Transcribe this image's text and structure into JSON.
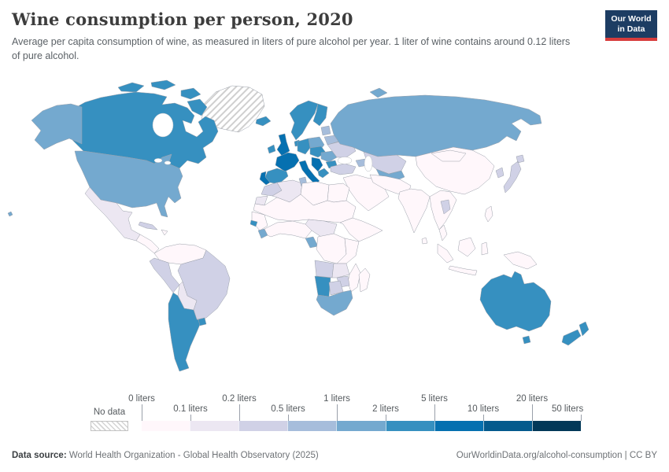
{
  "header": {
    "title": "Wine consumption per person, 2020",
    "subtitle": "Average per capita consumption of wine, as measured in liters of pure alcohol per year. 1 liter of wine contains around 0.12 liters of pure alcohol.",
    "logo": {
      "line1": "Our World",
      "line2": "in Data",
      "bg_color": "#1d3d63",
      "accent_color": "#d73c3c"
    }
  },
  "legend": {
    "no_data_label": "No data",
    "ticks": [
      {
        "label": "0 liters",
        "row": "top"
      },
      {
        "label": "0.1 liters",
        "row": "bottom"
      },
      {
        "label": "0.2 liters",
        "row": "top"
      },
      {
        "label": "0.5 liters",
        "row": "bottom"
      },
      {
        "label": "1 liters",
        "row": "top"
      },
      {
        "label": "2 liters",
        "row": "bottom"
      },
      {
        "label": "5 liters",
        "row": "top"
      },
      {
        "label": "10 liters",
        "row": "bottom"
      },
      {
        "label": "20 liters",
        "row": "top"
      },
      {
        "label": "50 liters",
        "row": "bottom"
      }
    ]
  },
  "footer": {
    "source_label": "Data source:",
    "source_text": " World Health Organization - Global Health Observatory (2025)",
    "credit": "OurWorldinData.org/alcohol-consumption | CC BY"
  },
  "chart_data": {
    "type": "heatmap",
    "variant": "choropleth-world-map",
    "title": "Wine consumption per person, 2020",
    "unit": "liters of pure alcohol per year",
    "legend_position": "bottom",
    "no_data": {
      "label": "No data",
      "pattern": "diagonal-hatch"
    },
    "bins": [
      {
        "min": 0,
        "max": 0.1,
        "color": "#fff7fb"
      },
      {
        "min": 0.1,
        "max": 0.2,
        "color": "#ece7f2"
      },
      {
        "min": 0.2,
        "max": 0.5,
        "color": "#d0d1e6"
      },
      {
        "min": 0.5,
        "max": 1,
        "color": "#a6bddb"
      },
      {
        "min": 1,
        "max": 2,
        "color": "#74a9cf"
      },
      {
        "min": 2,
        "max": 5,
        "color": "#3690c0"
      },
      {
        "min": 5,
        "max": 10,
        "color": "#0570b0"
      },
      {
        "min": 10,
        "max": 20,
        "color": "#045a8d"
      },
      {
        "min": 20,
        "max": 50,
        "color": "#023858"
      }
    ],
    "ocean_color": "#ffffff",
    "border_color": "#9aa0aa",
    "regions": {
      "greenland": {
        "label": "Greenland",
        "value_range": "No data",
        "color": "hatch"
      },
      "canada": {
        "label": "Canada",
        "value_range": "2-5",
        "color": "#3690c0"
      },
      "canadian-arctic": {
        "label": "Canadian Arctic islands",
        "value_range": "2-5",
        "color": "#3690c0"
      },
      "alaska": {
        "label": "Alaska (United States)",
        "value_range": "1-2",
        "color": "#74a9cf"
      },
      "usa": {
        "label": "United States",
        "value_range": "1-2",
        "color": "#74a9cf"
      },
      "hawaii": {
        "label": "Hawaii (United States)",
        "value_range": "1-2",
        "color": "#74a9cf"
      },
      "mexico": {
        "label": "Mexico",
        "value_range": "0.1-0.2",
        "color": "#ece7f2"
      },
      "central-america": {
        "label": "Central America",
        "value_range": "0-0.1",
        "color": "#fff7fb"
      },
      "cuba": {
        "label": "Cuba",
        "value_range": "0.2-0.5",
        "color": "#d0d1e6"
      },
      "hispaniola": {
        "label": "Hispaniola",
        "value_range": "0-0.1",
        "color": "#fff7fb"
      },
      "colombia-venezuela": {
        "label": "Colombia / Venezuela / Guianas",
        "value_range": "0-0.1",
        "color": "#fff7fb"
      },
      "brazil": {
        "label": "Brazil",
        "value_range": "0.2-0.5",
        "color": "#d0d1e6"
      },
      "peru": {
        "label": "Peru / Ecuador",
        "value_range": "0.2-0.5",
        "color": "#d0d1e6"
      },
      "bolivia": {
        "label": "Bolivia",
        "value_range": "0.1-0.2",
        "color": "#ece7f2"
      },
      "argentina-chile": {
        "label": "Argentina / Chile",
        "value_range": "2-5",
        "color": "#3690c0"
      },
      "uruguay": {
        "label": "Uruguay",
        "value_range": "2-5",
        "color": "#3690c0"
      },
      "iceland": {
        "label": "Iceland",
        "value_range": "2-5",
        "color": "#3690c0"
      },
      "ireland": {
        "label": "Ireland",
        "value_range": "2-5",
        "color": "#3690c0"
      },
      "uk": {
        "label": "United Kingdom",
        "value_range": "5-10",
        "color": "#0570b0"
      },
      "norway-sweden": {
        "label": "Norway / Sweden",
        "value_range": "2-5",
        "color": "#3690c0"
      },
      "denmark": {
        "label": "Denmark",
        "value_range": "2-5",
        "color": "#3690c0"
      },
      "finland": {
        "label": "Finland",
        "value_range": "2-5",
        "color": "#3690c0"
      },
      "baltics": {
        "label": "Baltic states",
        "value_range": "0.5-1",
        "color": "#a6bddb"
      },
      "belarus": {
        "label": "Belarus",
        "value_range": "0.5-1",
        "color": "#a6bddb"
      },
      "poland": {
        "label": "Poland",
        "value_range": "1-2",
        "color": "#74a9cf"
      },
      "germany": {
        "label": "Germany / Benelux",
        "value_range": "2-5",
        "color": "#3690c0"
      },
      "france": {
        "label": "France",
        "value_range": "5-10",
        "color": "#0570b0"
      },
      "spain": {
        "label": "Spain",
        "value_range": "2-5",
        "color": "#3690c0"
      },
      "portugal": {
        "label": "Portugal",
        "value_range": "5-10",
        "color": "#0570b0"
      },
      "italy": {
        "label": "Italy",
        "value_range": "5-10",
        "color": "#0570b0"
      },
      "central-europe": {
        "label": "Central Europe",
        "value_range": "2-5",
        "color": "#3690c0"
      },
      "romania": {
        "label": "Romania",
        "value_range": "1-2",
        "color": "#74a9cf"
      },
      "balkans": {
        "label": "Western Balkans",
        "value_range": "5-10",
        "color": "#0570b0"
      },
      "greece": {
        "label": "Greece",
        "value_range": "2-5",
        "color": "#3690c0"
      },
      "bulgaria": {
        "label": "Bulgaria",
        "value_range": "2-5",
        "color": "#3690c0"
      },
      "ukraine": {
        "label": "Ukraine",
        "value_range": "0.2-0.5",
        "color": "#d0d1e6"
      },
      "russia": {
        "label": "Russia",
        "value_range": "1-2",
        "color": "#74a9cf"
      },
      "novaya-zemlya": {
        "label": "Novaya Zemlya (Russia)",
        "value_range": "1-2",
        "color": "#74a9cf"
      },
      "kazakhstan": {
        "label": "Kazakhstan",
        "value_range": "0.2-0.5",
        "color": "#d0d1e6"
      },
      "turkmenistan-uzbekistan": {
        "label": "Turkmenistan / Uzbekistan",
        "value_range": "1-2",
        "color": "#74a9cf"
      },
      "turkey": {
        "label": "Turkey",
        "value_range": "0.2-0.5",
        "color": "#d0d1e6"
      },
      "caucasus": {
        "label": "Caucasus",
        "value_range": "0.5-1",
        "color": "#a6bddb"
      },
      "middle-east": {
        "label": "Arabian Peninsula / Levant",
        "value_range": "0-0.1",
        "color": "#fff7fb"
      },
      "iran-afghanistan": {
        "label": "Iran / Afghanistan / Pakistan",
        "value_range": "0-0.1",
        "color": "#fff7fb"
      },
      "india": {
        "label": "India",
        "value_range": "0-0.1",
        "color": "#fff7fb"
      },
      "sri-lanka": {
        "label": "Sri Lanka",
        "value_range": "0-0.1",
        "color": "#fff7fb"
      },
      "china": {
        "label": "China",
        "value_range": "0-0.1",
        "color": "#fff7fb"
      },
      "mongolia": {
        "label": "Mongolia",
        "value_range": "0-0.1",
        "color": "#fff7fb"
      },
      "southeast-asia": {
        "label": "Mainland Southeast Asia",
        "value_range": "0-0.1",
        "color": "#fff7fb"
      },
      "laos": {
        "label": "Laos",
        "value_range": "0.2-0.5",
        "color": "#d0d1e6"
      },
      "korea": {
        "label": "South Korea",
        "value_range": "0.2-0.5",
        "color": "#d0d1e6"
      },
      "japan": {
        "label": "Japan",
        "value_range": "0.2-0.5",
        "color": "#d0d1e6"
      },
      "philippines": {
        "label": "Philippines",
        "value_range": "0-0.1",
        "color": "#fff7fb"
      },
      "malay-peninsula": {
        "label": "Malay Peninsula",
        "value_range": "0-0.1",
        "color": "#fff7fb"
      },
      "sumatra": {
        "label": "Sumatra (Indonesia)",
        "value_range": "0-0.1",
        "color": "#fff7fb"
      },
      "borneo": {
        "label": "Borneo",
        "value_range": "0-0.1",
        "color": "#fff7fb"
      },
      "sulawesi": {
        "label": "Sulawesi (Indonesia)",
        "value_range": "0-0.1",
        "color": "#fff7fb"
      },
      "java": {
        "label": "Java (Indonesia)",
        "value_range": "0-0.1",
        "color": "#fff7fb"
      },
      "new-guinea": {
        "label": "New Guinea",
        "value_range": "0-0.1",
        "color": "#fff7fb"
      },
      "morocco": {
        "label": "Morocco",
        "value_range": "0.2-0.5",
        "color": "#d0d1e6"
      },
      "western-sahara": {
        "label": "Western Sahara",
        "value_range": "0.1-0.2",
        "color": "#ece7f2"
      },
      "algeria": {
        "label": "Algeria",
        "value_range": "0.1-0.2",
        "color": "#ece7f2"
      },
      "tunisia": {
        "label": "Tunisia",
        "value_range": "0.5-1",
        "color": "#a6bddb"
      },
      "libya": {
        "label": "Libya",
        "value_range": "0-0.1",
        "color": "#fff7fb"
      },
      "egypt": {
        "label": "Egypt",
        "value_range": "0-0.1",
        "color": "#fff7fb"
      },
      "sahel": {
        "label": "Sahel belt",
        "value_range": "0-0.1",
        "color": "#fff7fb"
      },
      "senegal": {
        "label": "Senegal / Guinea",
        "value_range": "0-0.1",
        "color": "#fff7fb"
      },
      "guinea-bissau": {
        "label": "Guinea-Bissau",
        "value_range": "2-5",
        "color": "#3690c0"
      },
      "sierra-leone": {
        "label": "Sierra Leone / Liberia",
        "value_range": "1-2",
        "color": "#74a9cf"
      },
      "west-africa-coast": {
        "label": "West African coast",
        "value_range": "0-0.1",
        "color": "#fff7fb"
      },
      "cameroon-car": {
        "label": "Cameroon / Central Africa",
        "value_range": "0.1-0.2",
        "color": "#ece7f2"
      },
      "gabon-congo": {
        "label": "Gabon / Congo",
        "value_range": "1-2",
        "color": "#74a9cf"
      },
      "drc": {
        "label": "DR Congo",
        "value_range": "0-0.1",
        "color": "#fff7fb"
      },
      "horn-of-africa": {
        "label": "Horn of Africa",
        "value_range": "0-0.1",
        "color": "#fff7fb"
      },
      "kenya-tanzania": {
        "label": "Kenya / Tanzania",
        "value_range": "0-0.1",
        "color": "#fff7fb"
      },
      "angola": {
        "label": "Angola",
        "value_range": "0.2-0.5",
        "color": "#d0d1e6"
      },
      "zambia": {
        "label": "Zambia",
        "value_range": "0.1-0.2",
        "color": "#ece7f2"
      },
      "mozambique": {
        "label": "Mozambique",
        "value_range": "0-0.1",
        "color": "#fff7fb"
      },
      "zimbabwe": {
        "label": "Zimbabwe",
        "value_range": "0.2-0.5",
        "color": "#d0d1e6"
      },
      "namibia": {
        "label": "Namibia",
        "value_range": "2-5",
        "color": "#3690c0"
      },
      "botswana": {
        "label": "Botswana",
        "value_range": "0.2-0.5",
        "color": "#d0d1e6"
      },
      "south-africa": {
        "label": "South Africa",
        "value_range": "1-2",
        "color": "#74a9cf"
      },
      "madagascar": {
        "label": "Madagascar",
        "value_range": "0-0.1",
        "color": "#fff7fb"
      },
      "australia": {
        "label": "Australia",
        "value_range": "2-5",
        "color": "#3690c0"
      },
      "tasmania": {
        "label": "Tasmania (Australia)",
        "value_range": "2-5",
        "color": "#3690c0"
      },
      "new-zealand": {
        "label": "New Zealand",
        "value_range": "2-5",
        "color": "#3690c0"
      }
    }
  }
}
